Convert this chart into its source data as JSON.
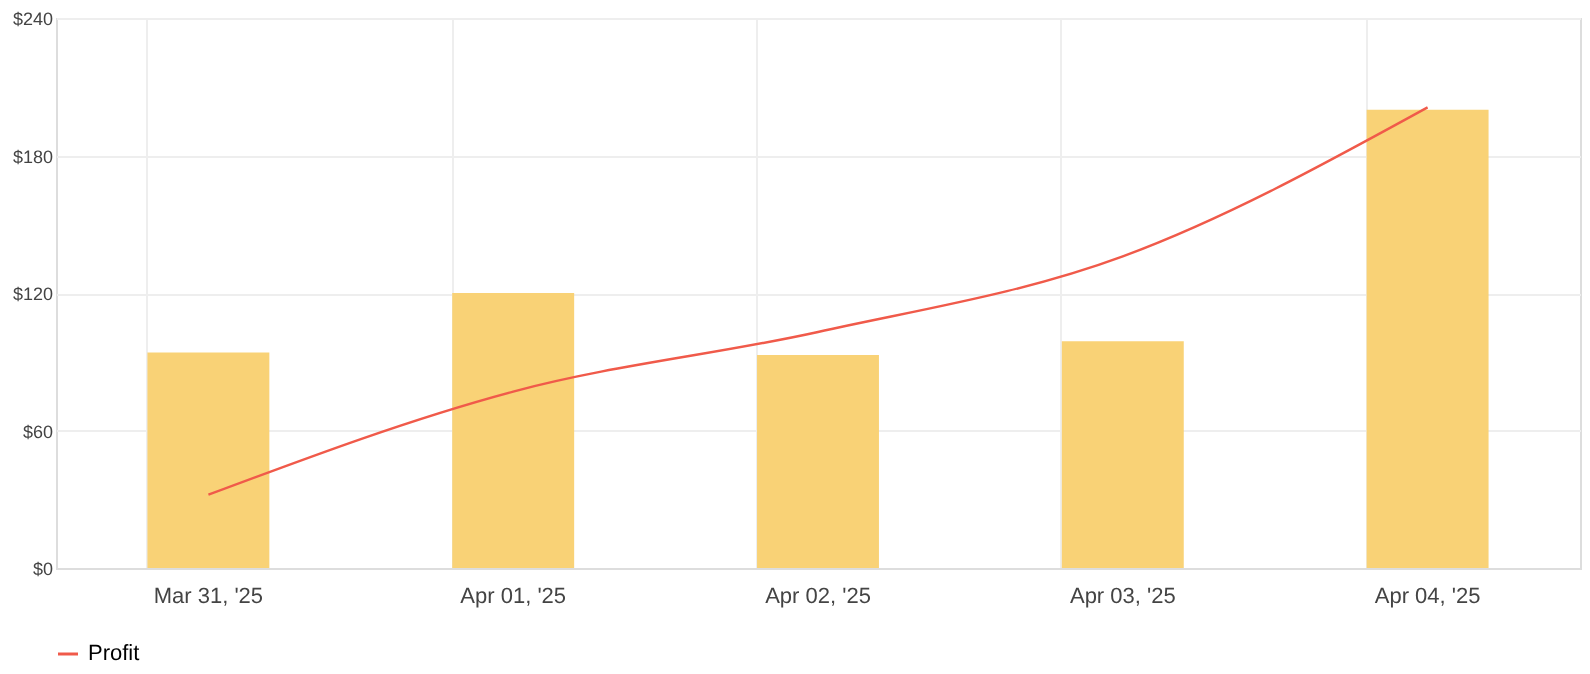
{
  "chart_data": {
    "type": "bar",
    "categories": [
      "Mar 31, '25",
      "Apr 01, '25",
      "Apr 02, '25",
      "Apr 03, '25",
      "Apr 04, '25"
    ],
    "series": [
      {
        "color": "#f9d06f",
        "values": [
          94,
          120,
          93,
          99,
          200
        ]
      },
      {
        "type": "line",
        "name": "Profit",
        "color": "#f05a4a",
        "values": [
          32,
          77,
          103,
          136,
          201
        ]
      }
    ],
    "ylim": [
      0,
      240
    ],
    "yticks": [
      {
        "value": 0,
        "label": "$0"
      },
      {
        "value": 60,
        "label": "$60"
      },
      {
        "value": 120,
        "label": "$120"
      },
      {
        "value": 180,
        "label": "$180"
      },
      {
        "value": 240,
        "label": "$240"
      }
    ],
    "grid": true,
    "legend": "bottom",
    "marker": "none",
    "line_style": "solid"
  }
}
